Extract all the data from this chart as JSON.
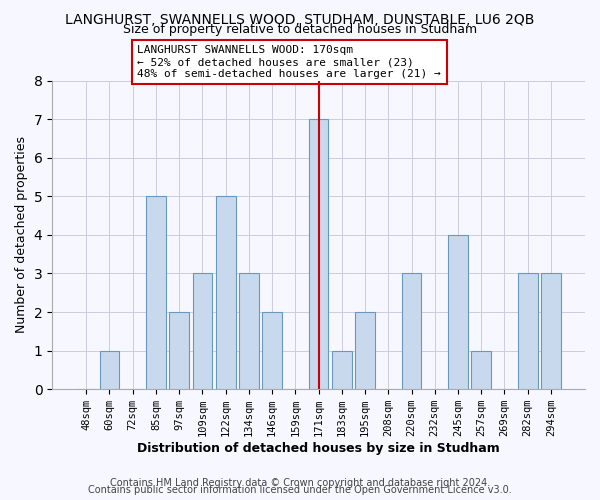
{
  "title": "LANGHURST, SWANNELLS WOOD, STUDHAM, DUNSTABLE, LU6 2QB",
  "subtitle": "Size of property relative to detached houses in Studham",
  "xlabel": "Distribution of detached houses by size in Studham",
  "ylabel": "Number of detached properties",
  "bar_labels": [
    "48sqm",
    "60sqm",
    "72sqm",
    "85sqm",
    "97sqm",
    "109sqm",
    "122sqm",
    "134sqm",
    "146sqm",
    "159sqm",
    "171sqm",
    "183sqm",
    "195sqm",
    "208sqm",
    "220sqm",
    "232sqm",
    "245sqm",
    "257sqm",
    "269sqm",
    "282sqm",
    "294sqm"
  ],
  "bar_values": [
    0,
    1,
    0,
    5,
    2,
    3,
    5,
    3,
    2,
    0,
    7,
    1,
    2,
    0,
    3,
    0,
    4,
    1,
    0,
    3,
    3
  ],
  "bar_color": "#c9d9ed",
  "bar_edge_color": "#6699bb",
  "highlight_index": 10,
  "highlight_line_color": "#cc0000",
  "annotation_text": "LANGHURST SWANNELLS WOOD: 170sqm\n← 52% of detached houses are smaller (23)\n48% of semi-detached houses are larger (21) →",
  "annotation_box_edge_color": "#cc0000",
  "ylim": [
    0,
    8
  ],
  "yticks": [
    0,
    1,
    2,
    3,
    4,
    5,
    6,
    7,
    8
  ],
  "footer_line1": "Contains HM Land Registry data © Crown copyright and database right 2024.",
  "footer_line2": "Contains public sector information licensed under the Open Government Licence v3.0.",
  "bg_color": "#f7f7ff",
  "grid_color": "#ccccdd",
  "title_fontsize": 10,
  "subtitle_fontsize": 9,
  "xlabel_fontsize": 9,
  "ylabel_fontsize": 9,
  "tick_fontsize": 7.5,
  "annotation_fontsize": 8,
  "footer_fontsize": 7
}
